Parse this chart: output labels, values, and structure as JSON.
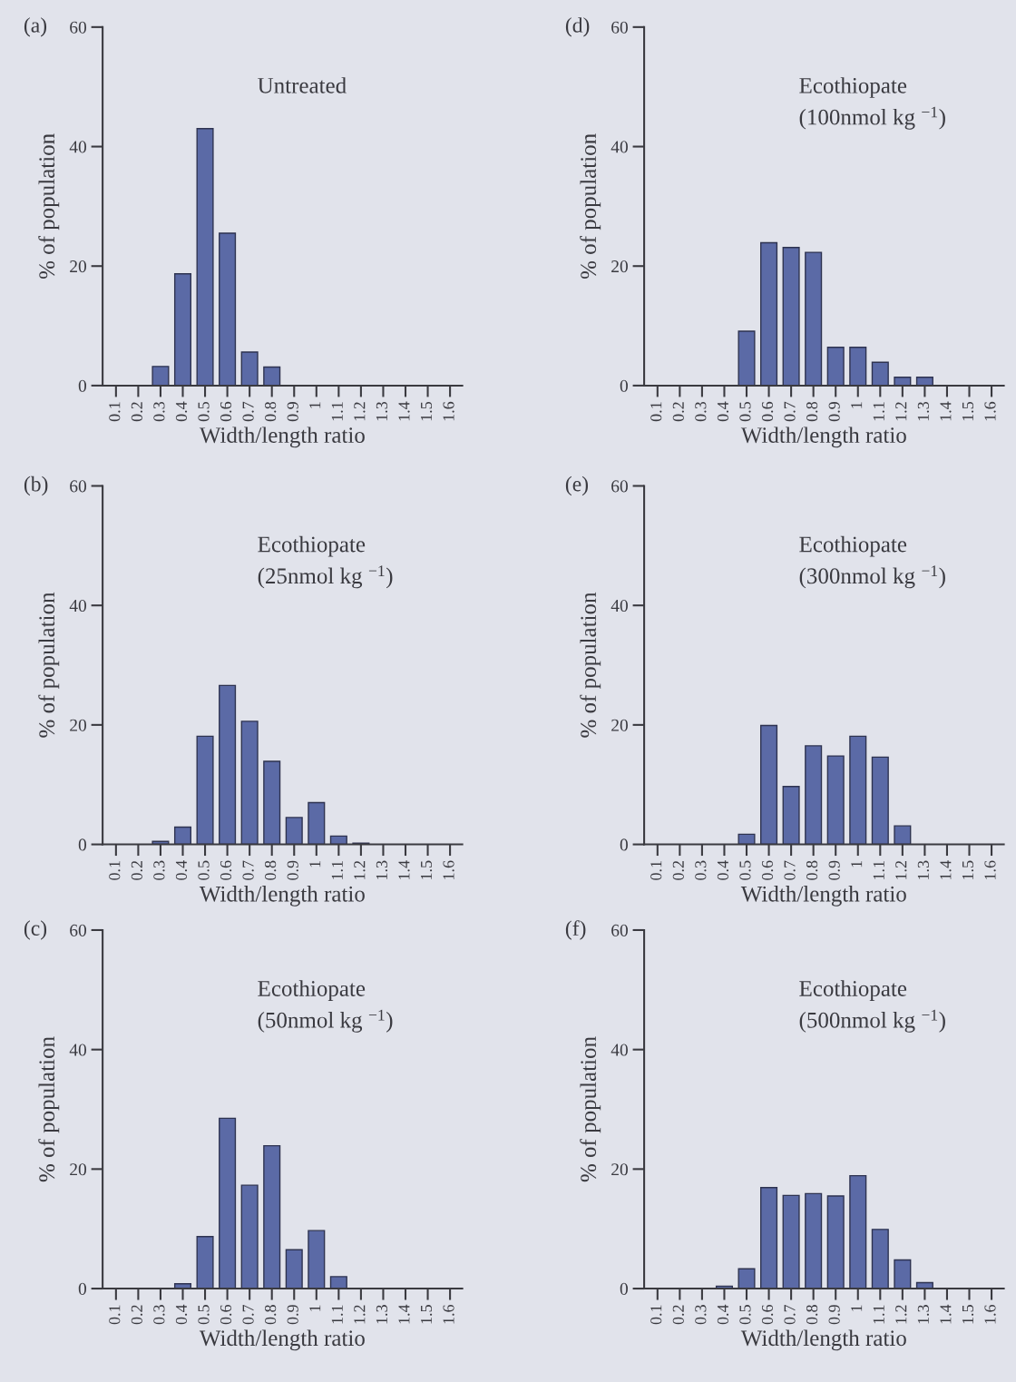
{
  "chart_data": [
    {
      "type": "bar",
      "title": "(a)",
      "subtitle": "Untreated",
      "xlabel": "Width/length ratio",
      "ylabel": "% of population",
      "categories": [
        "0.1",
        "0.2",
        "0.3",
        "0.4",
        "0.5",
        "0.6",
        "0.7",
        "0.8",
        "0.9",
        "1",
        "1.1",
        "1.2",
        "1.3",
        "1.4",
        "1.5",
        "1.6"
      ],
      "values": [
        0,
        0,
        3.2,
        18.7,
        43,
        25.5,
        5.6,
        3.1,
        0,
        0,
        0,
        0,
        0,
        0,
        0,
        0
      ],
      "color": "#5b6aa6",
      "ylim": [
        0,
        60
      ],
      "yticks": [
        0,
        20,
        40,
        60
      ]
    },
    {
      "type": "bar",
      "title": "(d)",
      "subtitle": "Ecothiopate\n(100nmol kg $^{−1}$)",
      "xlabel": "Width/length ratio",
      "ylabel": "% of population",
      "categories": [
        "0.1",
        "0.2",
        "0.3",
        "0.4",
        "0.5",
        "0.6",
        "0.7",
        "0.8",
        "0.9",
        "1",
        "1.1",
        "1.2",
        "1.3",
        "1.4",
        "1.5",
        "1.6"
      ],
      "values": [
        0,
        0,
        0,
        0,
        9.1,
        23.9,
        23.1,
        22.3,
        6.4,
        6.4,
        3.9,
        1.4,
        1.4,
        0,
        0,
        0
      ],
      "color": "#5b6aa6",
      "ylim": [
        0,
        60
      ],
      "yticks": [
        0,
        20,
        40,
        60
      ]
    },
    {
      "type": "bar",
      "title": "(b)",
      "subtitle": "Ecothiopate\n(25nmol kg $^{−1}$)",
      "xlabel": "Width/length ratio",
      "ylabel": "% of population",
      "categories": [
        "0.1",
        "0.2",
        "0.3",
        "0.4",
        "0.5",
        "0.6",
        "0.7",
        "0.8",
        "0.9",
        "1",
        "1.1",
        "1.2",
        "1.3",
        "1.4",
        "1.5",
        "1.6"
      ],
      "values": [
        0,
        0,
        0.5,
        2.9,
        18.1,
        26.6,
        20.6,
        13.9,
        4.5,
        7.0,
        1.4,
        0.2,
        0,
        0,
        0,
        0
      ],
      "color": "#5b6aa6",
      "ylim": [
        0,
        60
      ],
      "yticks": [
        0,
        20,
        40,
        60
      ]
    },
    {
      "type": "bar",
      "title": "(e)",
      "subtitle": "Ecothiopate\n(300nmol kg $^{−1}$)",
      "xlabel": "Width/length ratio",
      "ylabel": "% of population",
      "categories": [
        "0.1",
        "0.2",
        "0.3",
        "0.4",
        "0.5",
        "0.6",
        "0.7",
        "0.8",
        "0.9",
        "1",
        "1.1",
        "1.2",
        "1.3",
        "1.4",
        "1.5",
        "1.6"
      ],
      "values": [
        0,
        0,
        0,
        0,
        1.7,
        19.9,
        9.7,
        16.5,
        14.8,
        18.1,
        14.6,
        3.1,
        0,
        0,
        0,
        0
      ],
      "color": "#5b6aa6",
      "ylim": [
        0,
        60
      ],
      "yticks": [
        0,
        20,
        40,
        60
      ]
    },
    {
      "type": "bar",
      "title": "(c)",
      "subtitle": "Ecothiopate\n(50nmol kg $^{−1}$)",
      "xlabel": "Width/length ratio",
      "ylabel": "% of population",
      "categories": [
        "0.1",
        "0.2",
        "0.3",
        "0.4",
        "0.5",
        "0.6",
        "0.7",
        "0.8",
        "0.9",
        "1",
        "1.1",
        "1.2",
        "1.3",
        "1.4",
        "1.5",
        "1.6"
      ],
      "values": [
        0,
        0,
        0,
        0.8,
        8.7,
        28.5,
        17.3,
        23.9,
        6.5,
        9.7,
        2.0,
        0,
        0,
        0,
        0,
        0
      ],
      "color": "#5b6aa6",
      "ylim": [
        0,
        60
      ],
      "yticks": [
        0,
        20,
        40,
        60
      ]
    },
    {
      "type": "bar",
      "title": "(f)",
      "subtitle": "Ecothiopate\n(500nmol kg $^{−1}$)",
      "xlabel": "Width/length ratio",
      "ylabel": "% of population",
      "categories": [
        "0.1",
        "0.2",
        "0.3",
        "0.4",
        "0.5",
        "0.6",
        "0.7",
        "0.8",
        "0.9",
        "1",
        "1.1",
        "1.2",
        "1.3",
        "1.4",
        "1.5",
        "1.6"
      ],
      "values": [
        0,
        0,
        0,
        0.4,
        3.3,
        16.9,
        15.6,
        15.9,
        15.5,
        18.9,
        9.9,
        4.8,
        1.0,
        0,
        0,
        0
      ],
      "color": "#5b6aa6",
      "ylim": [
        0,
        60
      ],
      "yticks": [
        0,
        20,
        40,
        60
      ]
    }
  ]
}
